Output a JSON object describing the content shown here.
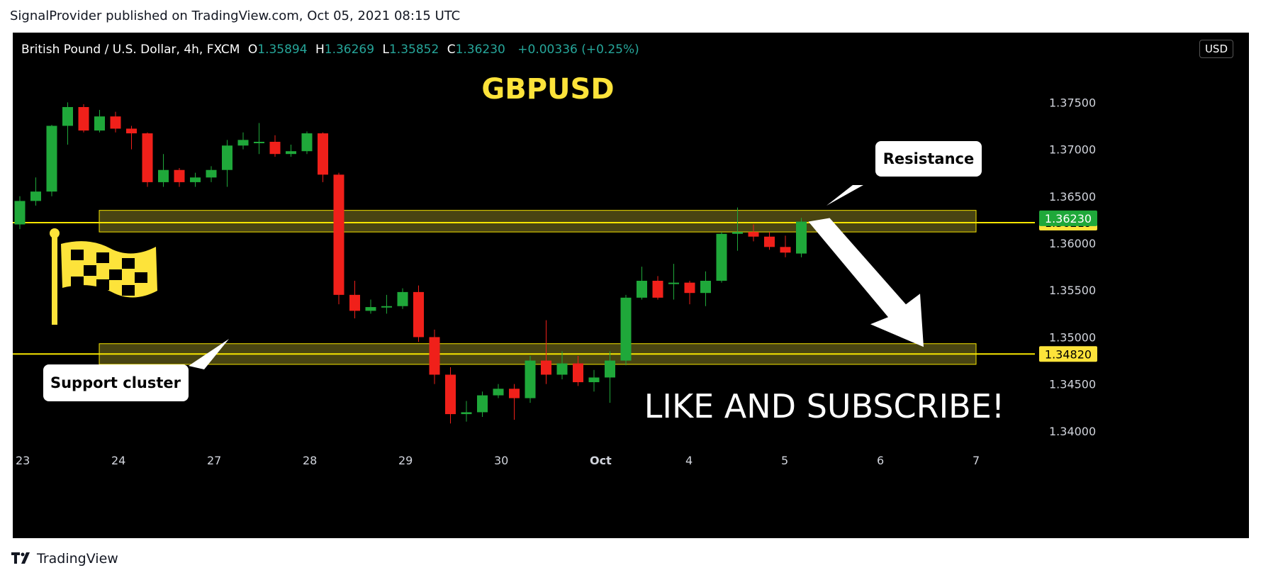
{
  "header": {
    "caption": "SignalProvider published on TradingView.com, Oct 05, 2021 08:15 UTC"
  },
  "ohlc": {
    "symbol": "British Pound / U.S. Dollar, 4h, FXCM",
    "o_label": "O",
    "o": "1.35894",
    "h_label": "H",
    "h": "1.36269",
    "l_label": "L",
    "l": "1.35852",
    "c_label": "C",
    "c": "1.36230",
    "change": "+0.00336 (+0.25%)"
  },
  "currency_button": "USD",
  "footer": {
    "brand": "TradingView",
    "logo_icon": "tradingview-logo-icon"
  },
  "colors": {
    "background": "#000000",
    "bull": "#1fa83a",
    "bear": "#f0201a",
    "level_line": "#f5e400",
    "zone_fill": "rgba(160,150,40,0.45)",
    "title_yellow": "#fde33a",
    "price_badge_green": "#1fa83a",
    "price_badge_yellow": "#fde33a"
  },
  "chart_data": {
    "type": "candlestick",
    "title": "GBPUSD",
    "ylim": [
      1.3375,
      1.3785
    ],
    "yticks": [
      "1.37500",
      "1.37000",
      "1.36500",
      "1.36000",
      "1.35500",
      "1.35000",
      "1.34500",
      "1.34000"
    ],
    "xticks": [
      {
        "label": "23",
        "idx": 0
      },
      {
        "label": "24",
        "idx": 6
      },
      {
        "label": "27",
        "idx": 12
      },
      {
        "label": "28",
        "idx": 18
      },
      {
        "label": "29",
        "idx": 24
      },
      {
        "label": "30",
        "idx": 30
      },
      {
        "label": "Oct",
        "idx": 36
      },
      {
        "label": "4",
        "idx": 42
      },
      {
        "label": "5",
        "idx": 48
      },
      {
        "label": "6",
        "idx": 54
      },
      {
        "label": "7",
        "idx": 60
      }
    ],
    "candles": [
      {
        "o": 1.362,
        "h": 1.365,
        "l": 1.3615,
        "c": 1.3645
      },
      {
        "o": 1.3645,
        "h": 1.367,
        "l": 1.364,
        "c": 1.3655
      },
      {
        "o": 1.3655,
        "h": 1.3726,
        "l": 1.365,
        "c": 1.3725
      },
      {
        "o": 1.3725,
        "h": 1.375,
        "l": 1.3705,
        "c": 1.3745
      },
      {
        "o": 1.3745,
        "h": 1.3748,
        "l": 1.3718,
        "c": 1.372
      },
      {
        "o": 1.372,
        "h": 1.3742,
        "l": 1.3718,
        "c": 1.3735
      },
      {
        "o": 1.3735,
        "h": 1.374,
        "l": 1.3718,
        "c": 1.3722
      },
      {
        "o": 1.3722,
        "h": 1.3725,
        "l": 1.37,
        "c": 1.3717
      },
      {
        "o": 1.3717,
        "h": 1.3718,
        "l": 1.366,
        "c": 1.3665
      },
      {
        "o": 1.3665,
        "h": 1.3695,
        "l": 1.366,
        "c": 1.3678
      },
      {
        "o": 1.3678,
        "h": 1.368,
        "l": 1.366,
        "c": 1.3665
      },
      {
        "o": 1.3665,
        "h": 1.3675,
        "l": 1.366,
        "c": 1.367
      },
      {
        "o": 1.367,
        "h": 1.3682,
        "l": 1.3665,
        "c": 1.3678
      },
      {
        "o": 1.3678,
        "h": 1.371,
        "l": 1.366,
        "c": 1.3704
      },
      {
        "o": 1.3704,
        "h": 1.3718,
        "l": 1.37,
        "c": 1.371
      },
      {
        "o": 1.3708,
        "h": 1.3728,
        "l": 1.3695,
        "c": 1.3708
      },
      {
        "o": 1.3708,
        "h": 1.3715,
        "l": 1.3692,
        "c": 1.3695
      },
      {
        "o": 1.3695,
        "h": 1.3705,
        "l": 1.3692,
        "c": 1.3698
      },
      {
        "o": 1.3698,
        "h": 1.3719,
        "l": 1.3695,
        "c": 1.3717
      },
      {
        "o": 1.3717,
        "h": 1.3718,
        "l": 1.3665,
        "c": 1.3673
      },
      {
        "o": 1.3673,
        "h": 1.3675,
        "l": 1.3535,
        "c": 1.3545
      },
      {
        "o": 1.3545,
        "h": 1.356,
        "l": 1.352,
        "c": 1.3528
      },
      {
        "o": 1.3528,
        "h": 1.354,
        "l": 1.3525,
        "c": 1.3532
      },
      {
        "o": 1.3532,
        "h": 1.3545,
        "l": 1.3525,
        "c": 1.3533
      },
      {
        "o": 1.3533,
        "h": 1.3552,
        "l": 1.353,
        "c": 1.3548
      },
      {
        "o": 1.3548,
        "h": 1.3555,
        "l": 1.3495,
        "c": 1.35
      },
      {
        "o": 1.35,
        "h": 1.3508,
        "l": 1.345,
        "c": 1.346
      },
      {
        "o": 1.346,
        "h": 1.3468,
        "l": 1.3408,
        "c": 1.3418
      },
      {
        "o": 1.3418,
        "h": 1.3432,
        "l": 1.341,
        "c": 1.342
      },
      {
        "o": 1.342,
        "h": 1.3442,
        "l": 1.3415,
        "c": 1.3438
      },
      {
        "o": 1.3438,
        "h": 1.345,
        "l": 1.3435,
        "c": 1.3445
      },
      {
        "o": 1.3445,
        "h": 1.345,
        "l": 1.3412,
        "c": 1.3435
      },
      {
        "o": 1.3435,
        "h": 1.348,
        "l": 1.343,
        "c": 1.3475
      },
      {
        "o": 1.3475,
        "h": 1.3518,
        "l": 1.345,
        "c": 1.346
      },
      {
        "o": 1.346,
        "h": 1.3485,
        "l": 1.3455,
        "c": 1.3472
      },
      {
        "o": 1.3472,
        "h": 1.348,
        "l": 1.3448,
        "c": 1.3452
      },
      {
        "o": 1.3452,
        "h": 1.3465,
        "l": 1.3442,
        "c": 1.3457
      },
      {
        "o": 1.3457,
        "h": 1.3485,
        "l": 1.343,
        "c": 1.3475
      },
      {
        "o": 1.3475,
        "h": 1.3545,
        "l": 1.347,
        "c": 1.3542
      },
      {
        "o": 1.3542,
        "h": 1.3575,
        "l": 1.354,
        "c": 1.356
      },
      {
        "o": 1.356,
        "h": 1.3565,
        "l": 1.354,
        "c": 1.3542
      },
      {
        "o": 1.3558,
        "h": 1.3578,
        "l": 1.354,
        "c": 1.3558
      },
      {
        "o": 1.3558,
        "h": 1.356,
        "l": 1.3535,
        "c": 1.3547
      },
      {
        "o": 1.3547,
        "h": 1.357,
        "l": 1.3533,
        "c": 1.356
      },
      {
        "o": 1.356,
        "h": 1.3612,
        "l": 1.3558,
        "c": 1.361
      },
      {
        "o": 1.361,
        "h": 1.3638,
        "l": 1.3592,
        "c": 1.3612
      },
      {
        "o": 1.3612,
        "h": 1.362,
        "l": 1.3602,
        "c": 1.3607
      },
      {
        "o": 1.3607,
        "h": 1.3612,
        "l": 1.3593,
        "c": 1.3596
      },
      {
        "o": 1.3596,
        "h": 1.3608,
        "l": 1.3585,
        "c": 1.359
      },
      {
        "o": 1.3589,
        "h": 1.3627,
        "l": 1.3585,
        "c": 1.3623
      }
    ],
    "levels": [
      {
        "name": "resistance",
        "price": 1.36219,
        "zone": [
          1.3612,
          1.3635
        ],
        "label": "1.36219"
      },
      {
        "name": "support",
        "price": 1.3482,
        "zone": [
          1.3471,
          1.3493
        ],
        "label": "1.34820"
      }
    ],
    "last_price_label": "1.36230",
    "last_price": 1.3623,
    "annotations": {
      "resistance": "Resistance",
      "support": "Support cluster",
      "cta": "LIKE AND SUBSCRIBE!"
    },
    "arrow_target_price": 1.3482,
    "arrow_target_idx": 56,
    "flag_icon": "checkered-flag-icon"
  }
}
